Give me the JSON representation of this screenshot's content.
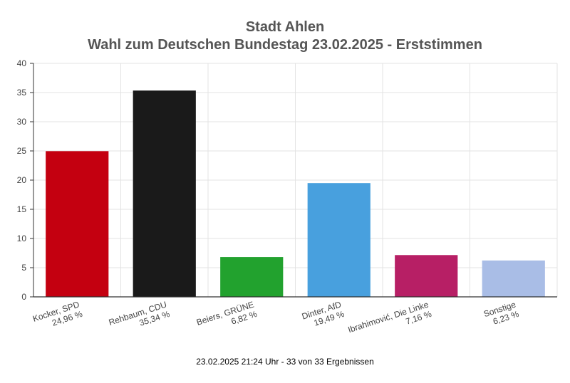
{
  "chart_data": {
    "type": "bar",
    "title": "Stadt Ahlen",
    "subtitle": "Wahl zum Deutschen Bundestag 23.02.2025  - Erststimmen",
    "categories": [
      [
        "Kocker, SPD",
        "24,96 %"
      ],
      [
        "Rehbaum, CDU",
        "35,34 %"
      ],
      [
        "Beiers, GRÜNE",
        "6,82 %"
      ],
      [
        "Dinter, AfD",
        "19,49 %"
      ],
      [
        "Ibrahimović, Die Linke",
        "7,16 %"
      ],
      [
        "Sonstige",
        "6,23 %"
      ]
    ],
    "values": [
      24.96,
      35.34,
      6.82,
      19.49,
      7.16,
      6.23
    ],
    "colors": [
      "#c40010",
      "#1a1a1a",
      "#22a22e",
      "#48a0de",
      "#b71f65",
      "#a9bde6"
    ],
    "ylim": [
      0,
      40
    ],
    "yticks": [
      0,
      5,
      10,
      15,
      20,
      25,
      30,
      35,
      40
    ],
    "grid": true
  },
  "footer": "23.02.2025 21:24 Uhr - 33 von 33 Ergebnissen"
}
